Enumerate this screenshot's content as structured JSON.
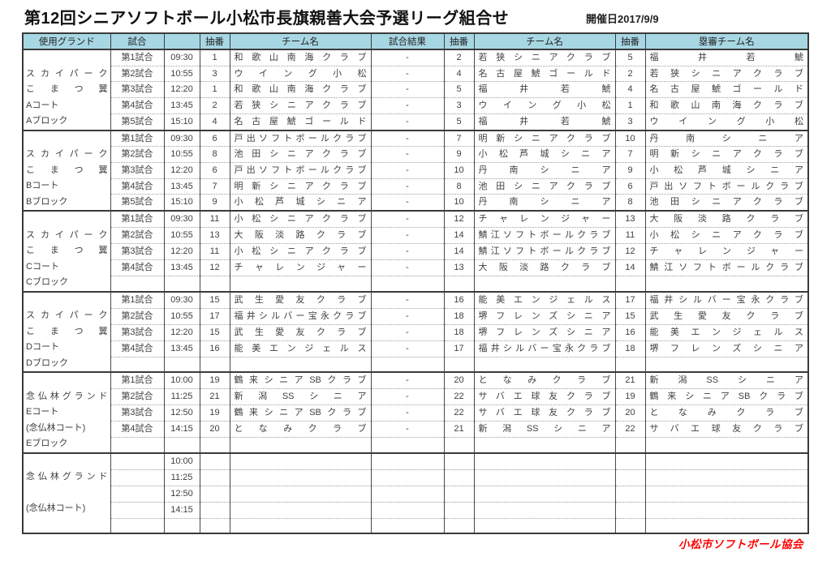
{
  "page": {
    "title": "第12回シニアソフトボール小松市長旗親善大会予選リーグ組合せ",
    "date_label": "開催日2017/9/9",
    "footer_credit": "小松市ソフトボール協会"
  },
  "colors": {
    "header_bg": "#a8d7e4",
    "border_dark": "#3a3a3a",
    "footer_red": "#ff0000",
    "text": "#404040"
  },
  "table": {
    "headers": [
      "使用グランド",
      "試合",
      "",
      "抽番",
      "チーム名",
      "試合結果",
      "抽番",
      "チーム名",
      "抽番",
      "塁審チーム名"
    ],
    "blocks": [
      {
        "id": "a",
        "ground_lines": [
          "",
          "スカイパーク",
          "こまつ翼",
          "Aコート",
          "Aブロック"
        ],
        "rows": [
          {
            "match": "第1試合",
            "time": "09:30",
            "no1": "1",
            "team1": "和歌山南海クラブ",
            "result": "-",
            "no2": "2",
            "team2": "若狭シニアクラブ",
            "no3": "5",
            "umpire": "福井若鯱"
          },
          {
            "match": "第2試合",
            "time": "10:55",
            "no1": "3",
            "team1": "ウイング小松",
            "result": "-",
            "no2": "4",
            "team2": "名古屋鯱ゴールド",
            "no3": "2",
            "umpire": "若狭シニアクラブ"
          },
          {
            "match": "第3試合",
            "time": "12:20",
            "no1": "1",
            "team1": "和歌山南海クラブ",
            "result": "-",
            "no2": "5",
            "team2": "福井若鯱",
            "no3": "4",
            "umpire": "名古屋鯱ゴールド"
          },
          {
            "match": "第4試合",
            "time": "13:45",
            "no1": "2",
            "team1": "若狭シニアクラブ",
            "result": "-",
            "no2": "3",
            "team2": "ウイング小松",
            "no3": "1",
            "umpire": "和歌山南海クラブ"
          },
          {
            "match": "第5試合",
            "time": "15:10",
            "no1": "4",
            "team1": "名古屋鯱ゴールド",
            "result": "-",
            "no2": "5",
            "team2": "福井若鯱",
            "no3": "3",
            "umpire": "ウイング小松"
          }
        ]
      },
      {
        "id": "b",
        "ground_lines": [
          "",
          "スカイパーク",
          "こまつ翼",
          "Bコート",
          "Bブロック"
        ],
        "rows": [
          {
            "match": "第1試合",
            "time": "09:30",
            "no1": "6",
            "team1": "戸出ソフトボールクラブ",
            "result": "-",
            "no2": "7",
            "team2": "明新シニアクラブ",
            "no3": "10",
            "umpire": "丹南シニア"
          },
          {
            "match": "第2試合",
            "time": "10:55",
            "no1": "8",
            "team1": "池田シニアクラブ",
            "result": "-",
            "no2": "9",
            "team2": "小松芦城シニア",
            "no3": "7",
            "umpire": "明新シニアクラブ"
          },
          {
            "match": "第3試合",
            "time": "12:20",
            "no1": "6",
            "team1": "戸出ソフトボールクラブ",
            "result": "-",
            "no2": "10",
            "team2": "丹南シニア",
            "no3": "9",
            "umpire": "小松芦城シニア"
          },
          {
            "match": "第4試合",
            "time": "13:45",
            "no1": "7",
            "team1": "明新シニアクラブ",
            "result": "-",
            "no2": "8",
            "team2": "池田シニアクラブ",
            "no3": "6",
            "umpire": "戸出ソフトボールクラブ"
          },
          {
            "match": "第5試合",
            "time": "15:10",
            "no1": "9",
            "team1": "小松芦城シニア",
            "result": "-",
            "no2": "10",
            "team2": "丹南シニア",
            "no3": "8",
            "umpire": "池田シニアクラブ"
          }
        ]
      },
      {
        "id": "c",
        "ground_lines": [
          "",
          "スカイパーク",
          "こまつ翼",
          "Cコート",
          "Cブロック"
        ],
        "rows": [
          {
            "match": "第1試合",
            "time": "09:30",
            "no1": "11",
            "team1": "小松シニアクラブ",
            "result": "-",
            "no2": "12",
            "team2": "チャレンジャー",
            "no3": "13",
            "umpire": "大阪淡路クラブ"
          },
          {
            "match": "第2試合",
            "time": "10:55",
            "no1": "13",
            "team1": "大阪淡路クラブ",
            "result": "-",
            "no2": "14",
            "team2": "鯖江ソフトボールクラブ",
            "no3": "11",
            "umpire": "小松シニアクラブ"
          },
          {
            "match": "第3試合",
            "time": "12:20",
            "no1": "11",
            "team1": "小松シニアクラブ",
            "result": "-",
            "no2": "14",
            "team2": "鯖江ソフトボールクラブ",
            "no3": "12",
            "umpire": "チャレンジャー"
          },
          {
            "match": "第4試合",
            "time": "13:45",
            "no1": "12",
            "team1": "チャレンジャー",
            "result": "-",
            "no2": "13",
            "team2": "大阪淡路クラブ",
            "no3": "14",
            "umpire": "鯖江ソフトボールクラブ"
          },
          {
            "match": "",
            "time": "",
            "no1": "",
            "team1": "",
            "result": "",
            "no2": "",
            "team2": "",
            "no3": "",
            "umpire": ""
          }
        ]
      },
      {
        "id": "d",
        "ground_lines": [
          "",
          "スカイパーク",
          "こまつ翼",
          "Dコート",
          "Dブロック"
        ],
        "rows": [
          {
            "match": "第1試合",
            "time": "09:30",
            "no1": "15",
            "team1": "武生愛友クラブ",
            "result": "-",
            "no2": "16",
            "team2": "能美エンジェルス",
            "no3": "17",
            "umpire": "福井シルバー宝永クラブ"
          },
          {
            "match": "第2試合",
            "time": "10:55",
            "no1": "17",
            "team1": "福井シルバー宝永クラブ",
            "result": "-",
            "no2": "18",
            "team2": "堺フレンズシニア",
            "no3": "15",
            "umpire": "武生愛友クラブ"
          },
          {
            "match": "第3試合",
            "time": "12:20",
            "no1": "15",
            "team1": "武生愛友クラブ",
            "result": "-",
            "no2": "18",
            "team2": "堺フレンズシニア",
            "no3": "16",
            "umpire": "能美エンジェルス"
          },
          {
            "match": "第4試合",
            "time": "13:45",
            "no1": "16",
            "team1": "能美エンジェルス",
            "result": "-",
            "no2": "17",
            "team2": "福井シルバー宝永クラブ",
            "no3": "18",
            "umpire": "堺フレンズシニア"
          },
          {
            "match": "",
            "time": "",
            "no1": "",
            "team1": "",
            "result": "",
            "no2": "",
            "team2": "",
            "no3": "",
            "umpire": ""
          }
        ]
      },
      {
        "id": "e",
        "ground_lines": [
          "",
          "念仏林グランド",
          "Eコート",
          "(念仏林コート)",
          "Eブロック"
        ],
        "rows": [
          {
            "match": "第1試合",
            "time": "10:00",
            "no1": "19",
            "team1": "鶴来シニアSBクラブ",
            "result": "-",
            "no2": "20",
            "team2": "となみクラブ",
            "no3": "21",
            "umpire": "新潟SSシニア"
          },
          {
            "match": "第2試合",
            "time": "11:25",
            "no1": "21",
            "team1": "新潟SSシニア",
            "result": "-",
            "no2": "22",
            "team2": "サバエ球友クラブ",
            "no3": "19",
            "umpire": "鶴来シニアSBクラブ"
          },
          {
            "match": "第3試合",
            "time": "12:50",
            "no1": "19",
            "team1": "鶴来シニアSBクラブ",
            "result": "-",
            "no2": "22",
            "team2": "サバエ球友クラブ",
            "no3": "20",
            "umpire": "となみクラブ"
          },
          {
            "match": "第4試合",
            "time": "14:15",
            "no1": "20",
            "team1": "となみクラブ",
            "result": "-",
            "no2": "21",
            "team2": "新潟SSシニア",
            "no3": "22",
            "umpire": "サバエ球友クラブ"
          },
          {
            "match": "",
            "time": "",
            "no1": "",
            "team1": "",
            "result": "",
            "no2": "",
            "team2": "",
            "no3": "",
            "umpire": ""
          }
        ]
      },
      {
        "id": "f",
        "ground_lines": [
          "",
          "念仏林グランド",
          "",
          "(念仏林コート)",
          ""
        ],
        "rows": [
          {
            "match": "",
            "time": "10:00",
            "no1": "",
            "team1": "",
            "result": "",
            "no2": "",
            "team2": "",
            "no3": "",
            "umpire": ""
          },
          {
            "match": "",
            "time": "11:25",
            "no1": "",
            "team1": "",
            "result": "",
            "no2": "",
            "team2": "",
            "no3": "",
            "umpire": ""
          },
          {
            "match": "",
            "time": "12:50",
            "no1": "",
            "team1": "",
            "result": "",
            "no2": "",
            "team2": "",
            "no3": "",
            "umpire": ""
          },
          {
            "match": "",
            "time": "14:15",
            "no1": "",
            "team1": "",
            "result": "",
            "no2": "",
            "team2": "",
            "no3": "",
            "umpire": ""
          },
          {
            "match": "",
            "time": "",
            "no1": "",
            "team1": "",
            "result": "",
            "no2": "",
            "team2": "",
            "no3": "",
            "umpire": ""
          }
        ]
      }
    ]
  }
}
